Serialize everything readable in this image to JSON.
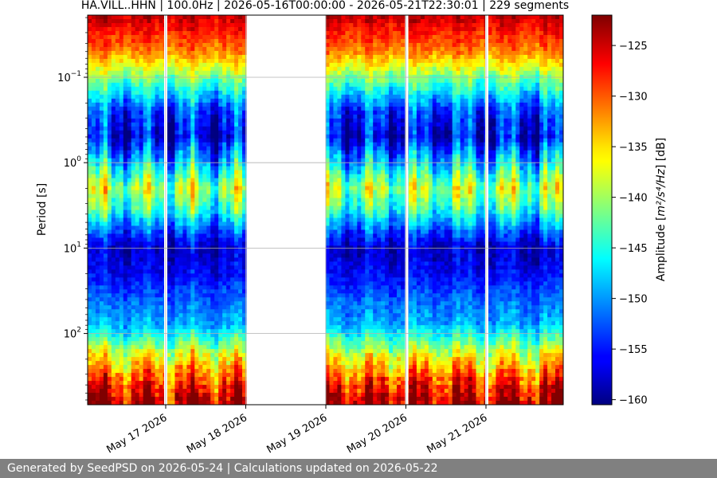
{
  "chart_data": {
    "type": "heatmap",
    "title": "HA.VILL..HHN | 100.0Hz | 2026-05-16T00:00:00 - 2026-05-21T22:30:01 | 229 segments",
    "xlabel": "",
    "ylabel": "Period [s]",
    "x_tick_labels": [
      "May 17 2026",
      "May 18 2026",
      "May 19 2026",
      "May 20 2026",
      "May 21 2026"
    ],
    "y_tick_labels": [
      {
        "base": "10",
        "exp": "−1",
        "value": 0.1
      },
      {
        "base": "10",
        "exp": "0",
        "value": 1
      },
      {
        "base": "10",
        "exp": "1",
        "value": 10
      },
      {
        "base": "10",
        "exp": "2",
        "value": 100
      }
    ],
    "y_scale": "log",
    "y_direction": "inverted",
    "ylim_period_s": [
      0.02,
      600
    ],
    "grid": true,
    "data_gap": {
      "start": "May 18 2026",
      "end": "May 19 2026"
    },
    "colorbar": {
      "label_prefix": "Amplitude [",
      "label_unit": "m²/s⁴/Hz",
      "label_suffix": "] [dB]",
      "ticks": [
        "−125",
        "−130",
        "−135",
        "−140",
        "−145",
        "−150",
        "−155",
        "−160"
      ],
      "range_db": [
        -160.5,
        -122
      ],
      "colormap": "jet"
    }
  },
  "footer": {
    "text": "Generated by SeedPSD on 2026-05-24 | Calculations updated on 2026-05-22"
  }
}
